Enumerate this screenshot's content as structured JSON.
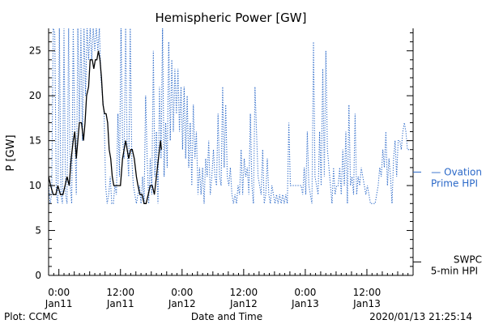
{
  "chart_data": {
    "type": "line",
    "title": "Hemispheric Power [GW]",
    "xlabel": "Date and Time",
    "ylabel": "P [GW]",
    "ylim": [
      0,
      27.5
    ],
    "yticks": [
      0,
      5,
      10,
      15,
      20,
      25
    ],
    "x_unit": "hours since 2020-01-10 22:00 UTC",
    "xlim": [
      0,
      71
    ],
    "xticks": [
      {
        "x": 2,
        "time": "0:00",
        "date": "Jan11"
      },
      {
        "x": 14,
        "time": "12:00",
        "date": "Jan11"
      },
      {
        "x": 26,
        "time": "0:00",
        "date": "Jan12"
      },
      {
        "x": 38,
        "time": "12:00",
        "date": "Jan12"
      },
      {
        "x": 50,
        "time": "0:00",
        "date": "Jan13"
      },
      {
        "x": 62,
        "time": "12:00",
        "date": "Jan13"
      }
    ],
    "legend": {
      "position": "right",
      "entries": [
        {
          "name": "Ovation Prime HPI",
          "line1": "— Ovation",
          "line2": "Prime HPI",
          "color": "#2a68c8",
          "y": 11.5
        },
        {
          "name": "SWPC 5-min HPI",
          "line1": "SWPC",
          "line2": "5-min HPI",
          "color": "#000000",
          "y": 1.5
        }
      ]
    },
    "series": [
      {
        "name": "SWPC 5-min HPI",
        "color": "#000000",
        "style": "solid",
        "points": [
          [
            0,
            11
          ],
          [
            0.4,
            10
          ],
          [
            0.9,
            9
          ],
          [
            1.4,
            9
          ],
          [
            1.8,
            10
          ],
          [
            2.3,
            9
          ],
          [
            2.8,
            9
          ],
          [
            3.2,
            10
          ],
          [
            3.6,
            11
          ],
          [
            4.0,
            10
          ],
          [
            4.4,
            13
          ],
          [
            4.8,
            15
          ],
          [
            5.1,
            16
          ],
          [
            5.4,
            13
          ],
          [
            5.7,
            15
          ],
          [
            6.0,
            17
          ],
          [
            6.4,
            17
          ],
          [
            6.8,
            15
          ],
          [
            7.1,
            17
          ],
          [
            7.4,
            20
          ],
          [
            7.8,
            21
          ],
          [
            8.1,
            24
          ],
          [
            8.5,
            24
          ],
          [
            8.8,
            23
          ],
          [
            9.1,
            24
          ],
          [
            9.4,
            24
          ],
          [
            9.7,
            25
          ],
          [
            10.0,
            24
          ],
          [
            10.3,
            22
          ],
          [
            10.6,
            19
          ],
          [
            10.9,
            18
          ],
          [
            11.2,
            18
          ],
          [
            11.5,
            17
          ],
          [
            11.8,
            14
          ],
          [
            12.1,
            13
          ],
          [
            12.4,
            11
          ],
          [
            12.7,
            10
          ],
          [
            13.2,
            10
          ],
          [
            13.6,
            10
          ],
          [
            14.0,
            10
          ],
          [
            14.4,
            13
          ],
          [
            14.7,
            14
          ],
          [
            15.0,
            15
          ],
          [
            15.3,
            14
          ],
          [
            15.6,
            13
          ],
          [
            16.0,
            14
          ],
          [
            16.3,
            14
          ],
          [
            16.7,
            13
          ],
          [
            17.1,
            11
          ],
          [
            17.4,
            10
          ],
          [
            17.8,
            9
          ],
          [
            18.2,
            9
          ],
          [
            18.6,
            8
          ],
          [
            19.0,
            8
          ],
          [
            19.4,
            9
          ],
          [
            19.8,
            10
          ],
          [
            20.2,
            10
          ],
          [
            20.6,
            9
          ],
          [
            21.0,
            11
          ],
          [
            21.4,
            13
          ],
          [
            21.8,
            15
          ],
          [
            22.0,
            14
          ]
        ]
      },
      {
        "name": "Ovation Prime HPI",
        "color": "#2a68c8",
        "style": "dotted",
        "points": [
          [
            0,
            10
          ],
          [
            0.3,
            8
          ],
          [
            0.6,
            9
          ],
          [
            0.9,
            27.5
          ],
          [
            1.2,
            27
          ],
          [
            1.5,
            9
          ],
          [
            1.8,
            8
          ],
          [
            2.1,
            27.5
          ],
          [
            2.4,
            9
          ],
          [
            2.7,
            8
          ],
          [
            3.0,
            27.5
          ],
          [
            3.3,
            9
          ],
          [
            3.6,
            8
          ],
          [
            3.9,
            27.5
          ],
          [
            4.2,
            10
          ],
          [
            4.5,
            8
          ],
          [
            4.8,
            27.5
          ],
          [
            5.1,
            16
          ],
          [
            5.4,
            9
          ],
          [
            5.7,
            27.5
          ],
          [
            6.0,
            17
          ],
          [
            6.3,
            27.5
          ],
          [
            6.6,
            15
          ],
          [
            6.9,
            27.5
          ],
          [
            7.2,
            20
          ],
          [
            7.5,
            27.5
          ],
          [
            7.8,
            24
          ],
          [
            8.1,
            27.5
          ],
          [
            8.4,
            24
          ],
          [
            8.7,
            27.5
          ],
          [
            9.0,
            25
          ],
          [
            9.3,
            27.5
          ],
          [
            9.6,
            25
          ],
          [
            9.9,
            27.5
          ],
          [
            10.2,
            22
          ],
          [
            10.5,
            20
          ],
          [
            10.8,
            18
          ],
          [
            11.1,
            10
          ],
          [
            11.4,
            8
          ],
          [
            11.7,
            9
          ],
          [
            12.0,
            11
          ],
          [
            12.3,
            8
          ],
          [
            12.6,
            8
          ],
          [
            12.9,
            10
          ],
          [
            13.2,
            9
          ],
          [
            13.5,
            18
          ],
          [
            13.8,
            11
          ],
          [
            14.1,
            27.5
          ],
          [
            14.4,
            15
          ],
          [
            14.7,
            13
          ],
          [
            15.0,
            27.5
          ],
          [
            15.3,
            14
          ],
          [
            15.6,
            11
          ],
          [
            15.9,
            27.5
          ],
          [
            16.2,
            13
          ],
          [
            16.5,
            10
          ],
          [
            16.8,
            9
          ],
          [
            17.1,
            8
          ],
          [
            17.4,
            9
          ],
          [
            17.7,
            10
          ],
          [
            18.0,
            8
          ],
          [
            18.3,
            11
          ],
          [
            18.6,
            8
          ],
          [
            18.9,
            20
          ],
          [
            19.2,
            13
          ],
          [
            19.5,
            8
          ],
          [
            19.8,
            13
          ],
          [
            20.1,
            9
          ],
          [
            20.4,
            25
          ],
          [
            20.7,
            11
          ],
          [
            21.0,
            16
          ],
          [
            21.3,
            8
          ],
          [
            21.6,
            21
          ],
          [
            21.9,
            13
          ],
          [
            22.2,
            27.5
          ],
          [
            22.5,
            11
          ],
          [
            22.8,
            17
          ],
          [
            23.1,
            12
          ],
          [
            23.4,
            26
          ],
          [
            23.7,
            15
          ],
          [
            24.0,
            24
          ],
          [
            24.3,
            16
          ],
          [
            24.6,
            23
          ],
          [
            24.9,
            18
          ],
          [
            25.2,
            23
          ],
          [
            25.5,
            16
          ],
          [
            25.8,
            21
          ],
          [
            26.1,
            14
          ],
          [
            26.4,
            21
          ],
          [
            26.7,
            13
          ],
          [
            27.0,
            20
          ],
          [
            27.3,
            12
          ],
          [
            27.6,
            17
          ],
          [
            27.9,
            10
          ],
          [
            28.2,
            19
          ],
          [
            28.5,
            13
          ],
          [
            28.8,
            16
          ],
          [
            29.1,
            9
          ],
          [
            29.4,
            12
          ],
          [
            29.7,
            9
          ],
          [
            30.0,
            12
          ],
          [
            30.3,
            8
          ],
          [
            30.6,
            13
          ],
          [
            30.9,
            11
          ],
          [
            31.2,
            15
          ],
          [
            31.5,
            9
          ],
          [
            31.8,
            11
          ],
          [
            32.1,
            14
          ],
          [
            32.4,
            11
          ],
          [
            32.7,
            10
          ],
          [
            33.0,
            18
          ],
          [
            33.3,
            11
          ],
          [
            33.6,
            10
          ],
          [
            33.9,
            21
          ],
          [
            34.2,
            12
          ],
          [
            34.5,
            19
          ],
          [
            34.8,
            11
          ],
          [
            35.1,
            10
          ],
          [
            35.4,
            12
          ],
          [
            35.7,
            9
          ],
          [
            36.0,
            8
          ],
          [
            36.3,
            9
          ],
          [
            36.6,
            8
          ],
          [
            36.9,
            10
          ],
          [
            37.2,
            9
          ],
          [
            37.5,
            14
          ],
          [
            37.8,
            9
          ],
          [
            38.1,
            13
          ],
          [
            38.4,
            11
          ],
          [
            38.7,
            12
          ],
          [
            39.0,
            9
          ],
          [
            39.3,
            18
          ],
          [
            39.6,
            10
          ],
          [
            39.9,
            8
          ],
          [
            40.2,
            21
          ],
          [
            40.5,
            16
          ],
          [
            40.8,
            11
          ],
          [
            41.1,
            10
          ],
          [
            41.4,
            9
          ],
          [
            41.7,
            14
          ],
          [
            42.0,
            8
          ],
          [
            42.3,
            9
          ],
          [
            42.6,
            13
          ],
          [
            42.9,
            9
          ],
          [
            43.2,
            8
          ],
          [
            43.5,
            10
          ],
          [
            43.8,
            9
          ],
          [
            44.1,
            8
          ],
          [
            44.4,
            9
          ],
          [
            44.7,
            8
          ],
          [
            45.0,
            9
          ],
          [
            45.3,
            8
          ],
          [
            45.6,
            9
          ],
          [
            45.9,
            8
          ],
          [
            46.2,
            9
          ],
          [
            46.5,
            8
          ],
          [
            46.8,
            17
          ],
          [
            47.1,
            10
          ],
          [
            47.4,
            10
          ],
          [
            47.7,
            10
          ],
          [
            48.0,
            10
          ],
          [
            48.3,
            10
          ],
          [
            48.6,
            10
          ],
          [
            48.9,
            10
          ],
          [
            49.2,
            10
          ],
          [
            49.5,
            9
          ],
          [
            49.8,
            12
          ],
          [
            50.1,
            9
          ],
          [
            50.4,
            16
          ],
          [
            50.7,
            10
          ],
          [
            51.0,
            9
          ],
          [
            51.3,
            8
          ],
          [
            51.6,
            26
          ],
          [
            51.9,
            11
          ],
          [
            52.2,
            10
          ],
          [
            52.5,
            9
          ],
          [
            52.8,
            16
          ],
          [
            53.1,
            10
          ],
          [
            53.4,
            23
          ],
          [
            53.7,
            11
          ],
          [
            54.0,
            25
          ],
          [
            54.3,
            14
          ],
          [
            54.6,
            12
          ],
          [
            54.9,
            10
          ],
          [
            55.2,
            8
          ],
          [
            55.5,
            12
          ],
          [
            55.8,
            9
          ],
          [
            56.1,
            10
          ],
          [
            56.4,
            10
          ],
          [
            56.7,
            12
          ],
          [
            57.0,
            9
          ],
          [
            57.3,
            14
          ],
          [
            57.6,
            10
          ],
          [
            57.9,
            16
          ],
          [
            58.2,
            8
          ],
          [
            58.5,
            19
          ],
          [
            58.8,
            10
          ],
          [
            59.1,
            11
          ],
          [
            59.4,
            9
          ],
          [
            59.7,
            18
          ],
          [
            60.0,
            9
          ],
          [
            60.3,
            11
          ],
          [
            60.6,
            10
          ],
          [
            60.9,
            12
          ],
          [
            61.2,
            11
          ],
          [
            61.5,
            10
          ],
          [
            61.8,
            9
          ],
          [
            62.1,
            10
          ],
          [
            62.4,
            9
          ],
          [
            62.7,
            8
          ],
          [
            63.0,
            8
          ],
          [
            63.3,
            8
          ],
          [
            63.6,
            8
          ],
          [
            63.9,
            9
          ],
          [
            64.2,
            10
          ],
          [
            64.5,
            12
          ],
          [
            64.8,
            11
          ],
          [
            65.1,
            14
          ],
          [
            65.4,
            12
          ],
          [
            65.7,
            16
          ],
          [
            66.0,
            10
          ],
          [
            66.3,
            13
          ],
          [
            66.6,
            11
          ],
          [
            66.9,
            8
          ],
          [
            67.2,
            13
          ],
          [
            67.5,
            15
          ],
          [
            67.8,
            11
          ],
          [
            68.1,
            15
          ],
          [
            68.4,
            15
          ],
          [
            68.7,
            14
          ],
          [
            69.0,
            16
          ],
          [
            69.3,
            17
          ],
          [
            69.6,
            16
          ],
          [
            69.9,
            14
          ],
          [
            70.2,
            14
          ]
        ]
      }
    ]
  },
  "footer": {
    "left": "Plot: CCMC",
    "right": "2020/01/13 21:25:14"
  }
}
